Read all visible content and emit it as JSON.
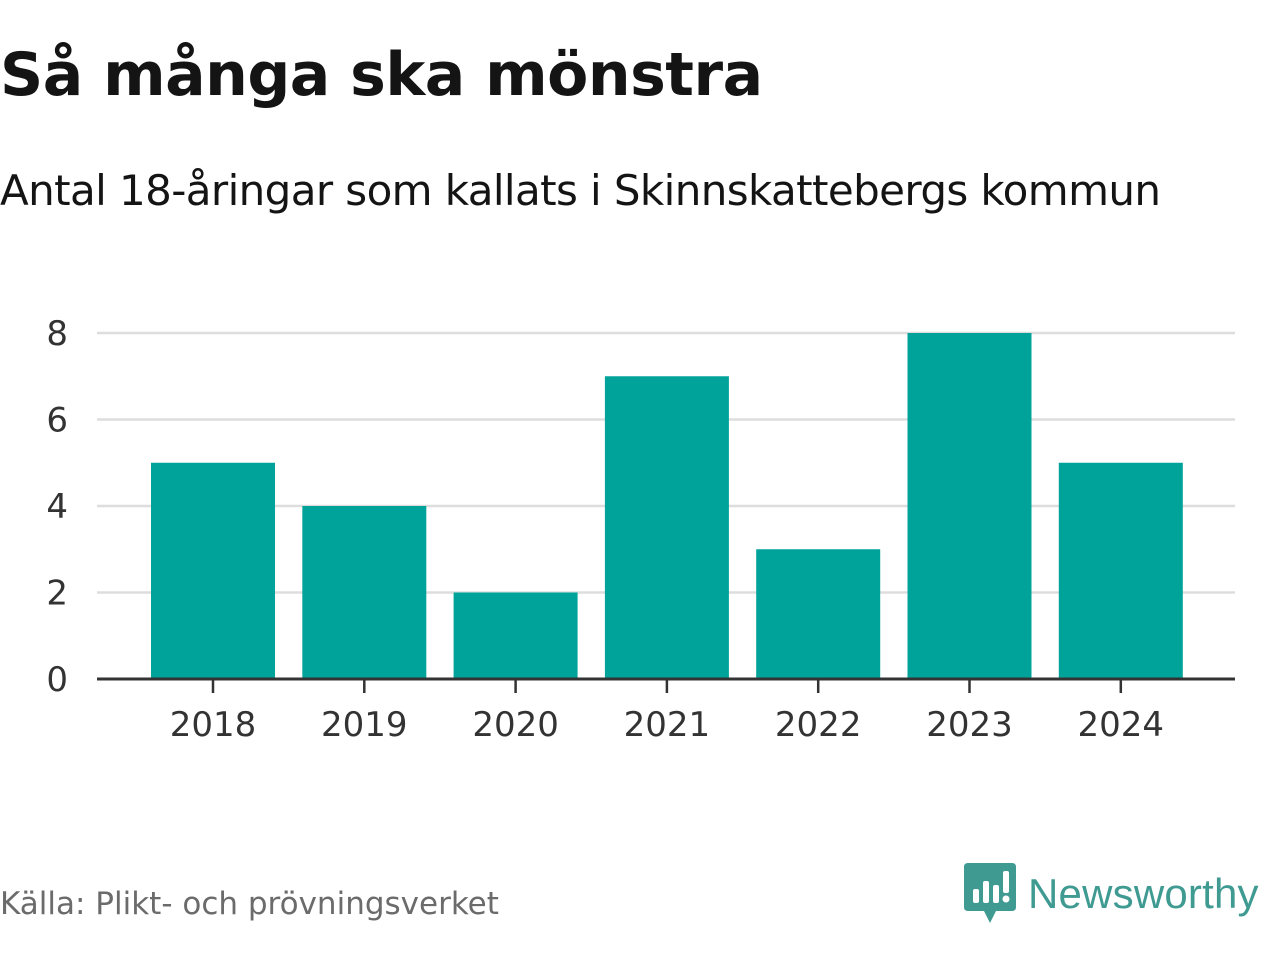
{
  "title": "Så många ska mönstra",
  "subtitle": "Antal 18-åringar som kallats i Skinnskattebergs kommun",
  "source": "Källa: Plikt- och prövningsverket",
  "brand": {
    "name": "Newsworthy",
    "icon": "newsworthy-logo-icon",
    "color": "#3f9a92"
  },
  "colors": {
    "bar": "#00a39a",
    "grid": "#dddddd",
    "axis": "#333333"
  },
  "chart_data": {
    "type": "bar",
    "title": "Så många ska mönstra",
    "subtitle": "Antal 18-åringar som kallats i Skinnskattebergs kommun",
    "categories": [
      "2018",
      "2019",
      "2020",
      "2021",
      "2022",
      "2023",
      "2024"
    ],
    "values": [
      5,
      4,
      2,
      7,
      3,
      8,
      5
    ],
    "xlabel": "",
    "ylabel": "",
    "ylim": [
      0,
      8
    ],
    "yticks": [
      0,
      2,
      4,
      6,
      8
    ],
    "grid": true,
    "legend": "none"
  }
}
